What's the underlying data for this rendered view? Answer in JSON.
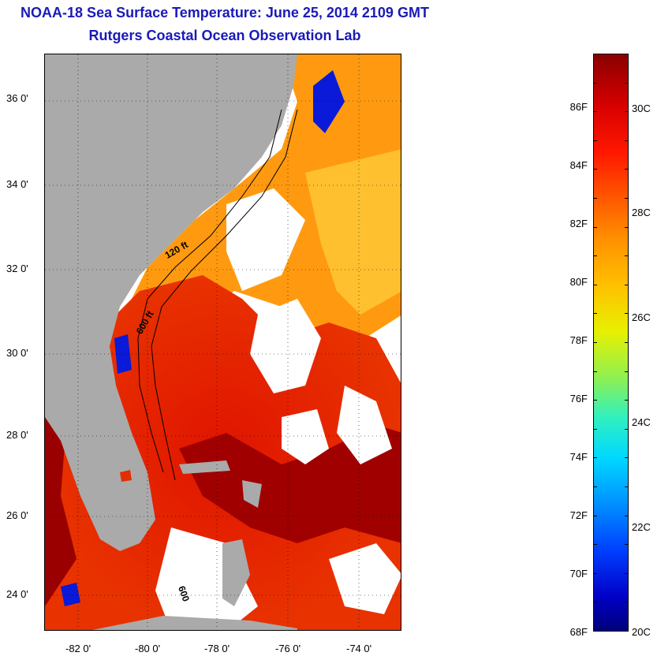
{
  "header": {
    "title_line1": "NOAA-18 Sea Surface Temperature:  June 25, 2014 2109 GMT",
    "title_line2": "Rutgers Coastal Ocean Observation Lab"
  },
  "map": {
    "lat_labels": [
      "36 0'",
      "34 0'",
      "32 0'",
      "30 0'",
      "28 0'",
      "26 0'",
      "24 0'"
    ],
    "lon_labels": [
      "-82 0'",
      "-80 0'",
      "-78 0'",
      "-76 0'",
      "-74 0'"
    ],
    "isobath_labels": [
      "120 ft",
      "600 ft",
      "600"
    ],
    "colors": {
      "land": "#aaaaaa",
      "cloud": "#ffffff",
      "warm": "#e01800",
      "hot": "#9a0000",
      "mid": "#ff8a00",
      "cool": "#0a1ad8"
    }
  },
  "colorbar": {
    "fahrenheit_labels": [
      "86F",
      "84F",
      "82F",
      "80F",
      "78F",
      "76F",
      "74F",
      "72F",
      "70F",
      "68F"
    ],
    "celsius_labels": [
      "30C",
      "28C",
      "26C",
      "24C",
      "22C",
      "20C"
    ]
  }
}
